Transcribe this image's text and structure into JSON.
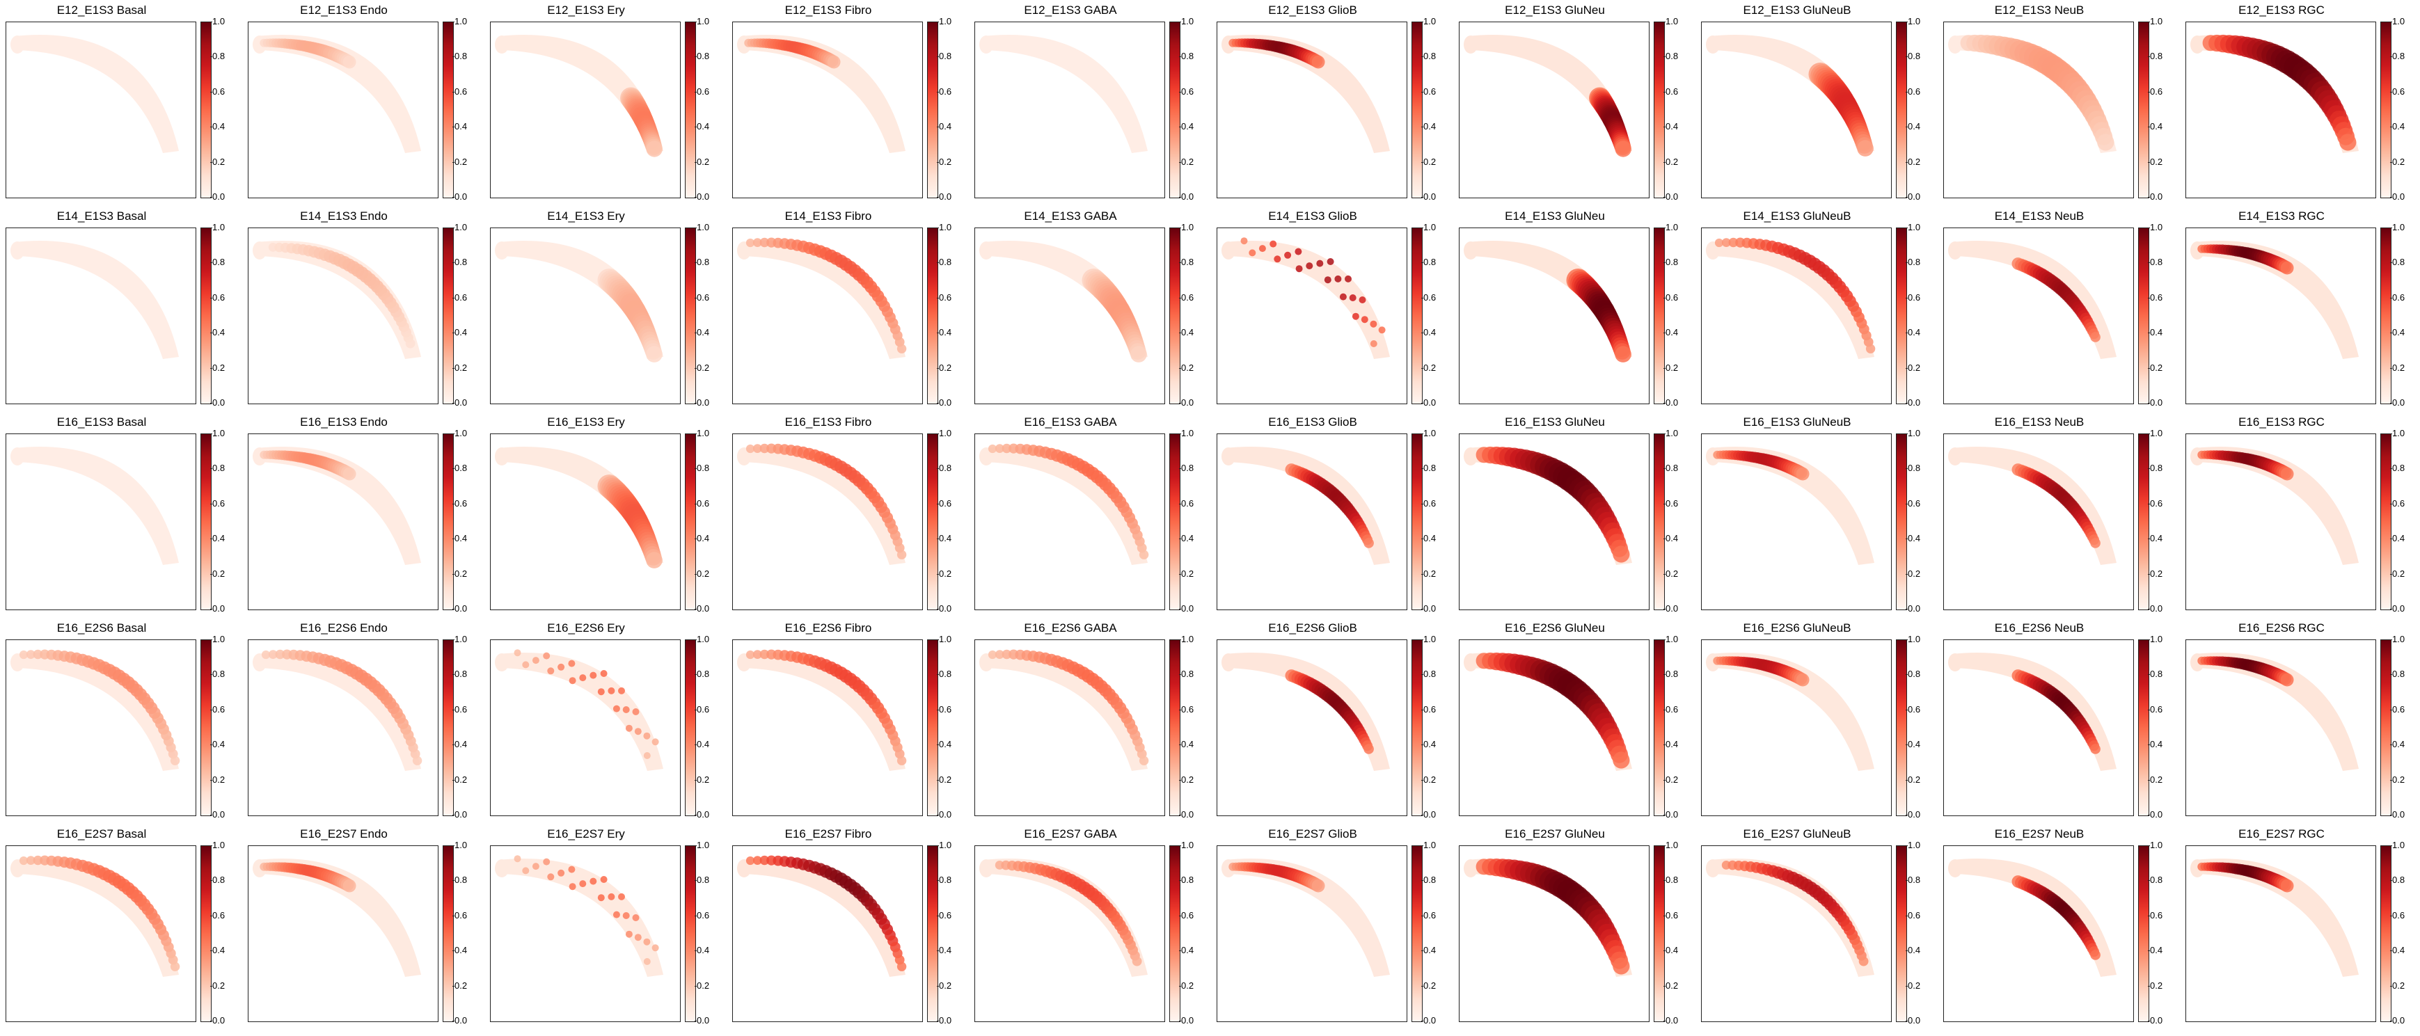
{
  "colorbar": {
    "ticks": [
      "0.0",
      "0.2",
      "0.4",
      "0.6",
      "0.8",
      "1.0"
    ],
    "colormap": "Reds",
    "range": [
      0,
      1
    ],
    "colors": [
      "#fff5f0",
      "#fee0d2",
      "#fcbba1",
      "#fc9272",
      "#fb6a4a",
      "#ef3b2c",
      "#cb181d",
      "#a50f15",
      "#67000d"
    ]
  },
  "chart_data": {
    "type": "heatmap",
    "layout": "5 rows x 10 columns of spatial maps, each with its own colorbar",
    "value_range": [
      0,
      1
    ],
    "rows": [
      "E12_E1S3",
      "E14_E1S3",
      "E16_E1S3",
      "E16_E2S6",
      "E16_E2S7"
    ],
    "columns": [
      "Basal",
      "Endo",
      "Ery",
      "Fibro",
      "GABA",
      "GlioB",
      "GluNeu",
      "GluNeuB",
      "NeuB",
      "RGC"
    ],
    "titles": [
      [
        "E12_E1S3 Basal",
        "E12_E1S3 Endo",
        "E12_E1S3 Ery",
        "E12_E1S3 Fibro",
        "E12_E1S3 GABA",
        "E12_E1S3 GlioB",
        "E12_E1S3 GluNeu",
        "E12_E1S3 GluNeuB",
        "E12_E1S3 NeuB",
        "E12_E1S3 RGC"
      ],
      [
        "E14_E1S3 Basal",
        "E14_E1S3 Endo",
        "E14_E1S3 Ery",
        "E14_E1S3 Fibro",
        "E14_E1S3 GABA",
        "E14_E1S3 GlioB",
        "E14_E1S3 GluNeu",
        "E14_E1S3 GluNeuB",
        "E14_E1S3 NeuB",
        "E14_E1S3 RGC"
      ],
      [
        "E16_E1S3 Basal",
        "E16_E1S3 Endo",
        "E16_E1S3 Ery",
        "E16_E1S3 Fibro",
        "E16_E1S3 GABA",
        "E16_E1S3 GlioB",
        "E16_E1S3 GluNeu",
        "E16_E1S3 GluNeuB",
        "E16_E1S3 NeuB",
        "E16_E1S3 RGC"
      ],
      [
        "E16_E2S6 Basal",
        "E16_E2S6 Endo",
        "E16_E2S6 Ery",
        "E16_E2S6 Fibro",
        "E16_E2S6 GABA",
        "E16_E2S6 GlioB",
        "E16_E2S6 GluNeu",
        "E16_E2S6 GluNeuB",
        "E16_E2S6 NeuB",
        "E16_E2S6 RGC"
      ],
      [
        "E16_E2S7 Basal",
        "E16_E2S7 Endo",
        "E16_E2S7 Ery",
        "E16_E2S7 Fibro",
        "E16_E2S7 GABA",
        "E16_E2S7 GlioB",
        "E16_E2S7 GluNeu",
        "E16_E2S7 GluNeuB",
        "E16_E2S7 NeuB",
        "E16_E2S7 RGC"
      ]
    ],
    "peak_intensity": [
      [
        0.1,
        0.3,
        0.45,
        0.55,
        0.12,
        0.95,
        0.95,
        0.7,
        0.35,
        1.0
      ],
      [
        0.1,
        0.25,
        0.3,
        0.55,
        0.35,
        0.85,
        1.0,
        0.7,
        0.9,
        1.0
      ],
      [
        0.12,
        0.4,
        0.55,
        0.55,
        0.5,
        0.9,
        1.0,
        0.8,
        0.9,
        0.95
      ],
      [
        0.4,
        0.4,
        0.5,
        0.6,
        0.5,
        0.95,
        1.0,
        0.8,
        1.0,
        1.0
      ],
      [
        0.5,
        0.55,
        0.5,
        0.95,
        0.6,
        0.7,
        1.0,
        0.8,
        1.0,
        1.0
      ]
    ],
    "hotspot_region": [
      [
        "none",
        "top",
        "bottom",
        "top",
        "none",
        "top",
        "bottom",
        "lower",
        "whole",
        "whole"
      ],
      [
        "none",
        "band",
        "lower",
        "outer",
        "lower",
        "spots",
        "lower",
        "outer",
        "inner",
        "top"
      ],
      [
        "none",
        "top",
        "lower",
        "outer",
        "outer",
        "inner",
        "whole",
        "top",
        "inner",
        "top"
      ],
      [
        "outer",
        "outer",
        "spots",
        "outer",
        "outer",
        "inner",
        "whole",
        "top",
        "inner",
        "top"
      ],
      [
        "outer",
        "top",
        "spots",
        "outer",
        "band",
        "top",
        "whole",
        "band",
        "inner",
        "top"
      ]
    ]
  }
}
